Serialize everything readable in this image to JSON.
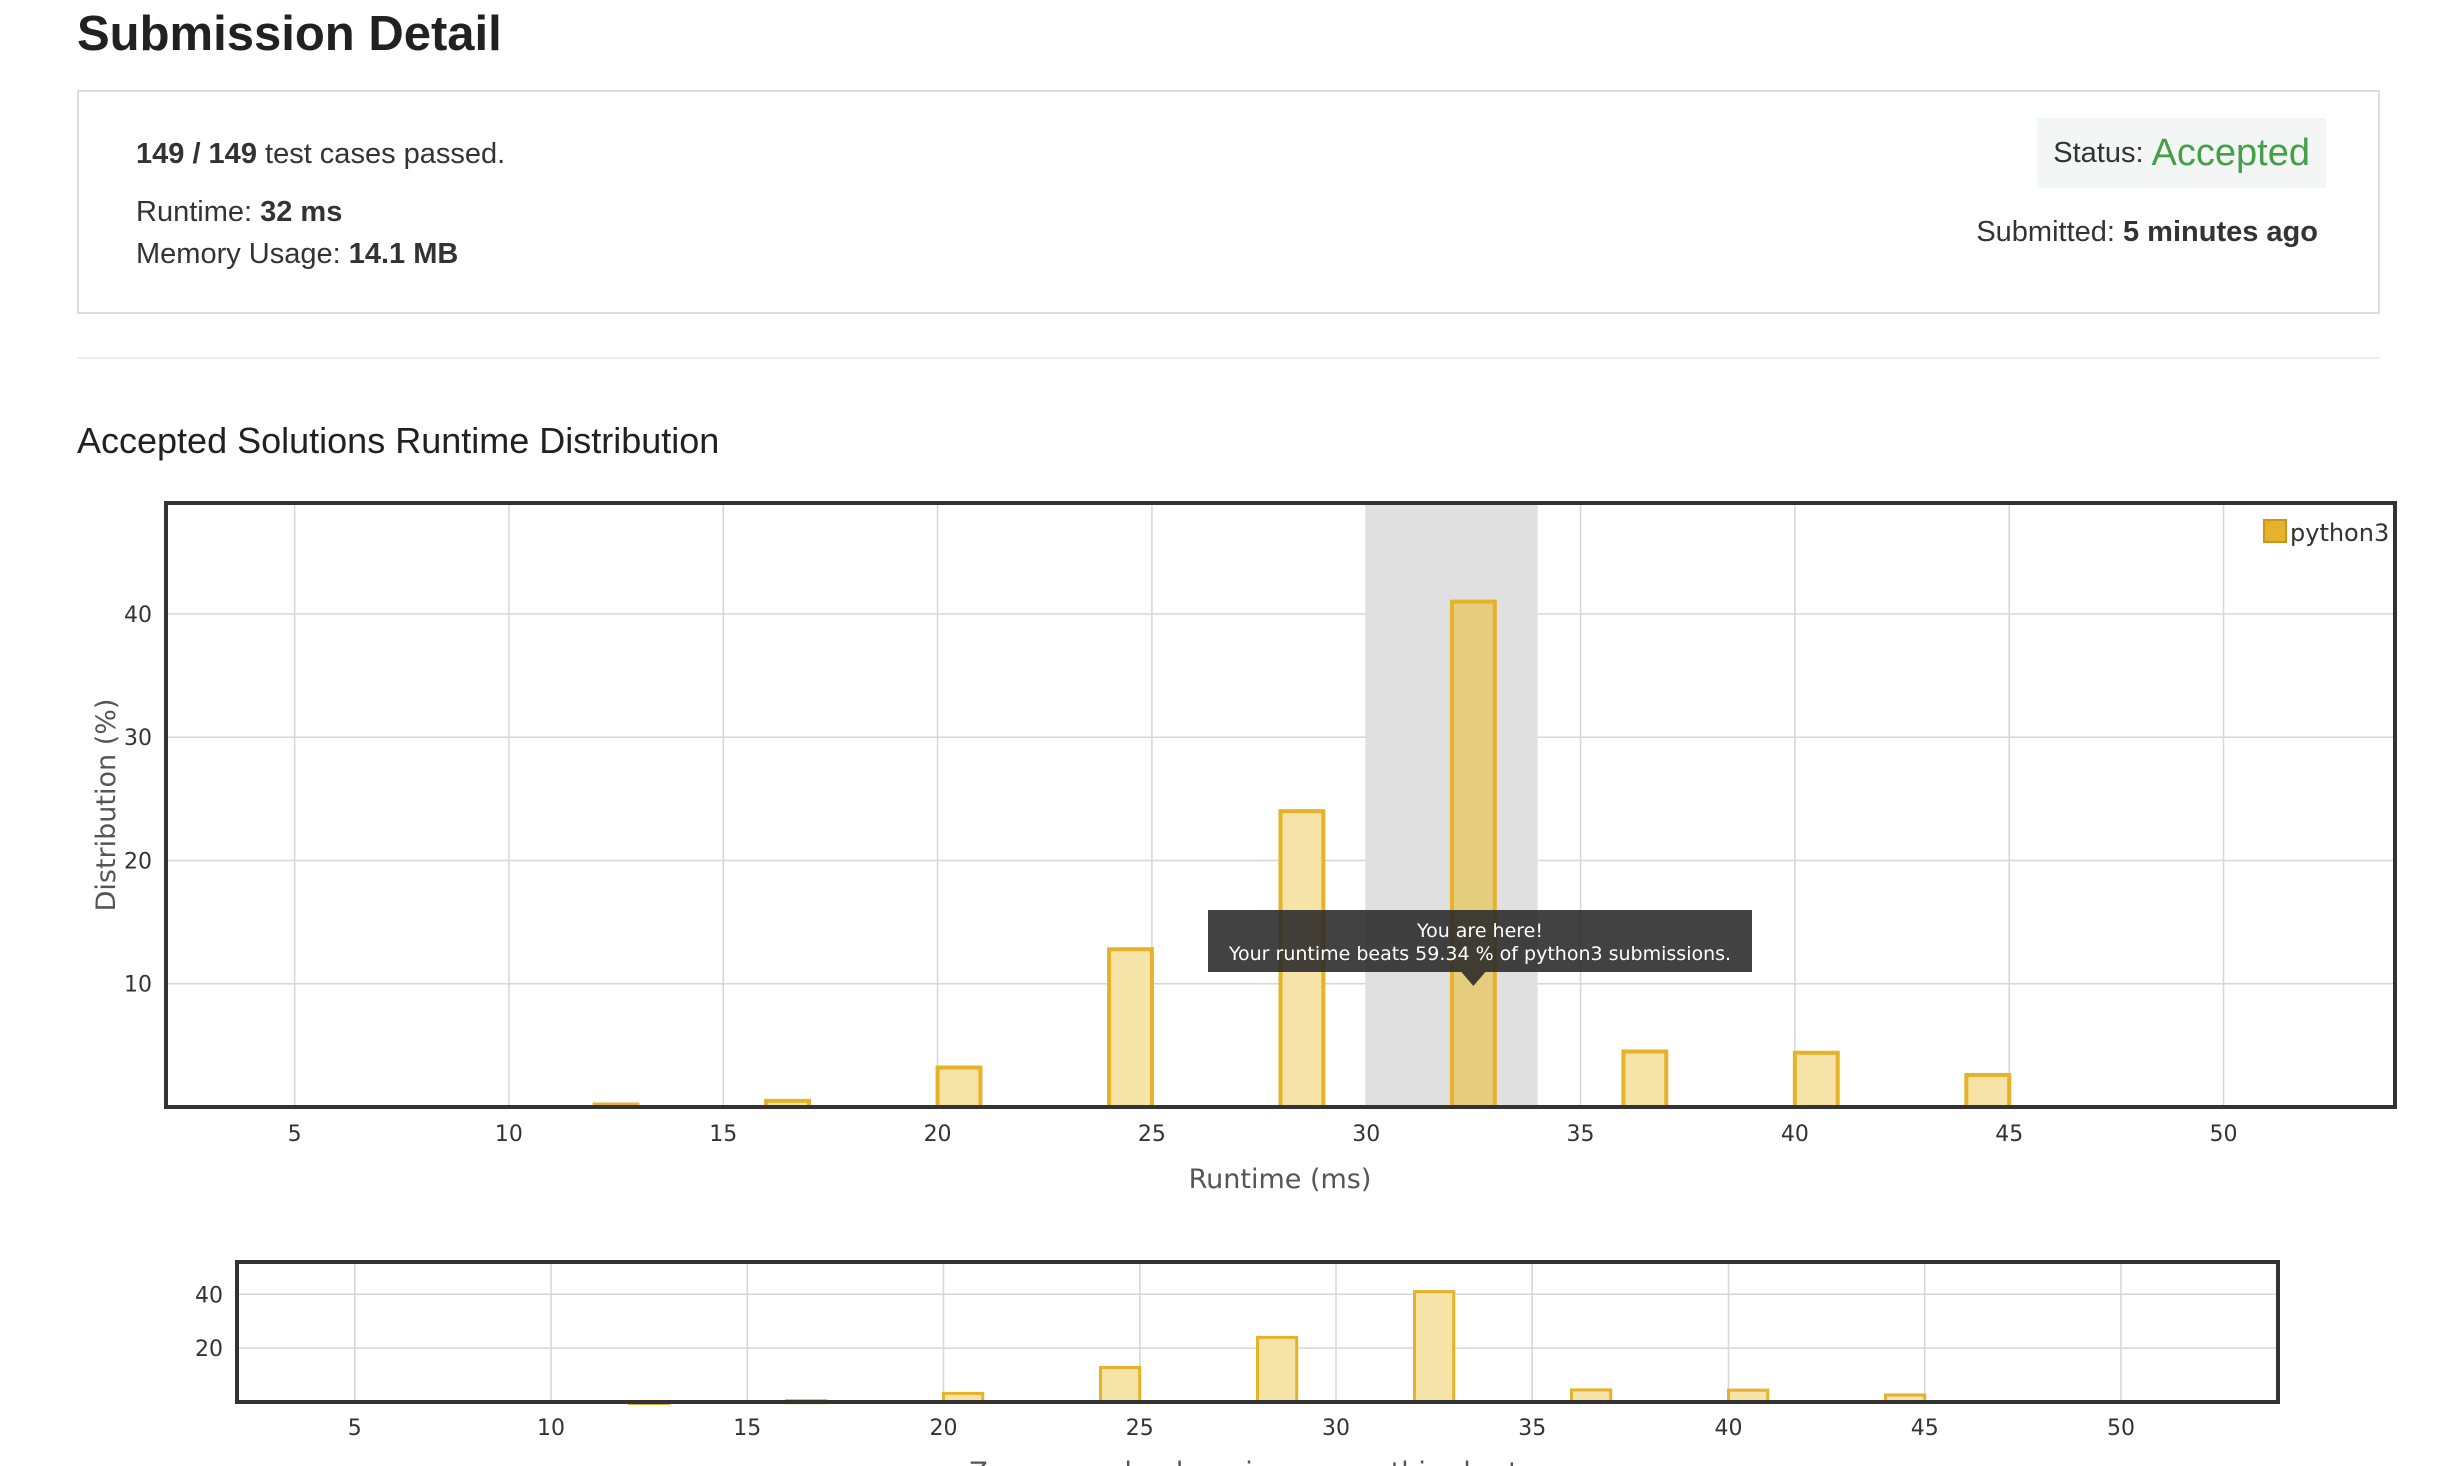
{
  "header": {
    "title": "Submission Detail"
  },
  "detail": {
    "cases_count": "149 / 149",
    "cases_suffix": " test cases passed.",
    "runtime_label": "Runtime: ",
    "runtime_value": "32 ms",
    "memory_label": "Memory Usage: ",
    "memory_value": "14.1 MB",
    "status_label": "Status: ",
    "status_value": "Accepted",
    "submitted_label": "Submitted: ",
    "submitted_value": "5 minutes ago"
  },
  "colors": {
    "accent_green": "#43a047",
    "bar_fill": "#f5e3a7",
    "bar_stroke": "#e5b229",
    "highlight_band": "#e0e0e0"
  },
  "distribution": {
    "title": "Accepted Solutions Runtime Distribution",
    "tooltip_title": "You are here!",
    "tooltip_text": "Your runtime beats 59.34 % of python3 submissions.",
    "zoom_hint": "Zoom area by dragging across this chart"
  },
  "chart_data": [
    {
      "type": "bar",
      "xlabel": "Runtime (ms)",
      "ylabel": "Distribution (%)",
      "xlim": [
        2,
        54
      ],
      "ylim": [
        0,
        49
      ],
      "xticks": [
        5,
        10,
        15,
        20,
        25,
        30,
        35,
        40,
        45,
        50
      ],
      "yticks": [
        10,
        20,
        30,
        40
      ],
      "legend": {
        "position": "top-right",
        "items": [
          "python3"
        ]
      },
      "grid": true,
      "highlight_range": [
        30,
        34
      ],
      "series": [
        {
          "name": "python3",
          "x": [
            12.5,
            16.5,
            20.5,
            24.5,
            28.5,
            32.5,
            36.5,
            40.5,
            44.5
          ],
          "values": [
            0.2,
            0.5,
            3.2,
            12.8,
            24.0,
            41.0,
            4.5,
            4.4,
            2.6
          ]
        }
      ]
    },
    {
      "type": "bar",
      "xlabel": "",
      "ylabel": "",
      "xlim": [
        2,
        54
      ],
      "ylim": [
        0,
        52
      ],
      "xticks": [
        5,
        10,
        15,
        20,
        25,
        30,
        35,
        40,
        45,
        50
      ],
      "yticks": [
        20,
        40
      ],
      "grid": true,
      "series": [
        {
          "name": "python3",
          "x": [
            12.5,
            16.5,
            20.5,
            24.5,
            28.5,
            32.5,
            36.5,
            40.5,
            44.5
          ],
          "values": [
            0.2,
            0.5,
            3.2,
            12.8,
            24.0,
            41.0,
            4.5,
            4.4,
            2.6
          ]
        }
      ]
    }
  ]
}
